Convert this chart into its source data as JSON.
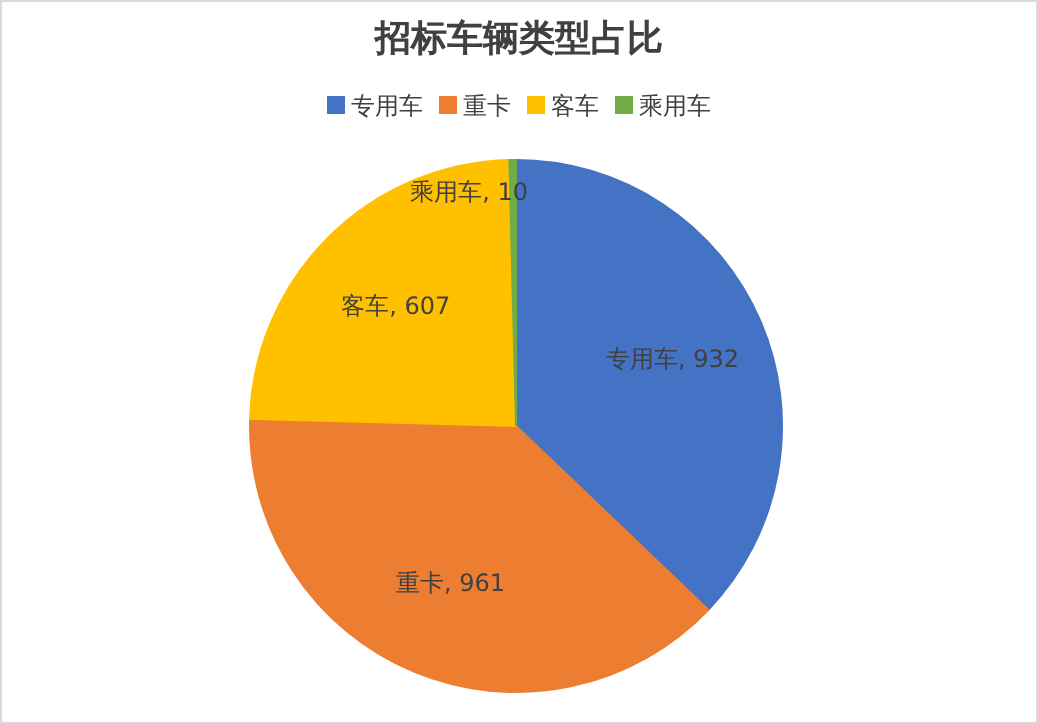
{
  "chart_data": {
    "type": "pie",
    "title": "招标车辆类型占比",
    "categories": [
      "专用车",
      "重卡",
      "客车",
      "乘用车"
    ],
    "values": [
      932,
      961,
      607,
      10
    ],
    "value_labels": [
      ", 932",
      ", 961",
      ", 607",
      ", 10"
    ],
    "colors": [
      "#4472c4",
      "#ed7d31",
      "#ffc000",
      "#70ad47"
    ],
    "legend": "top"
  }
}
